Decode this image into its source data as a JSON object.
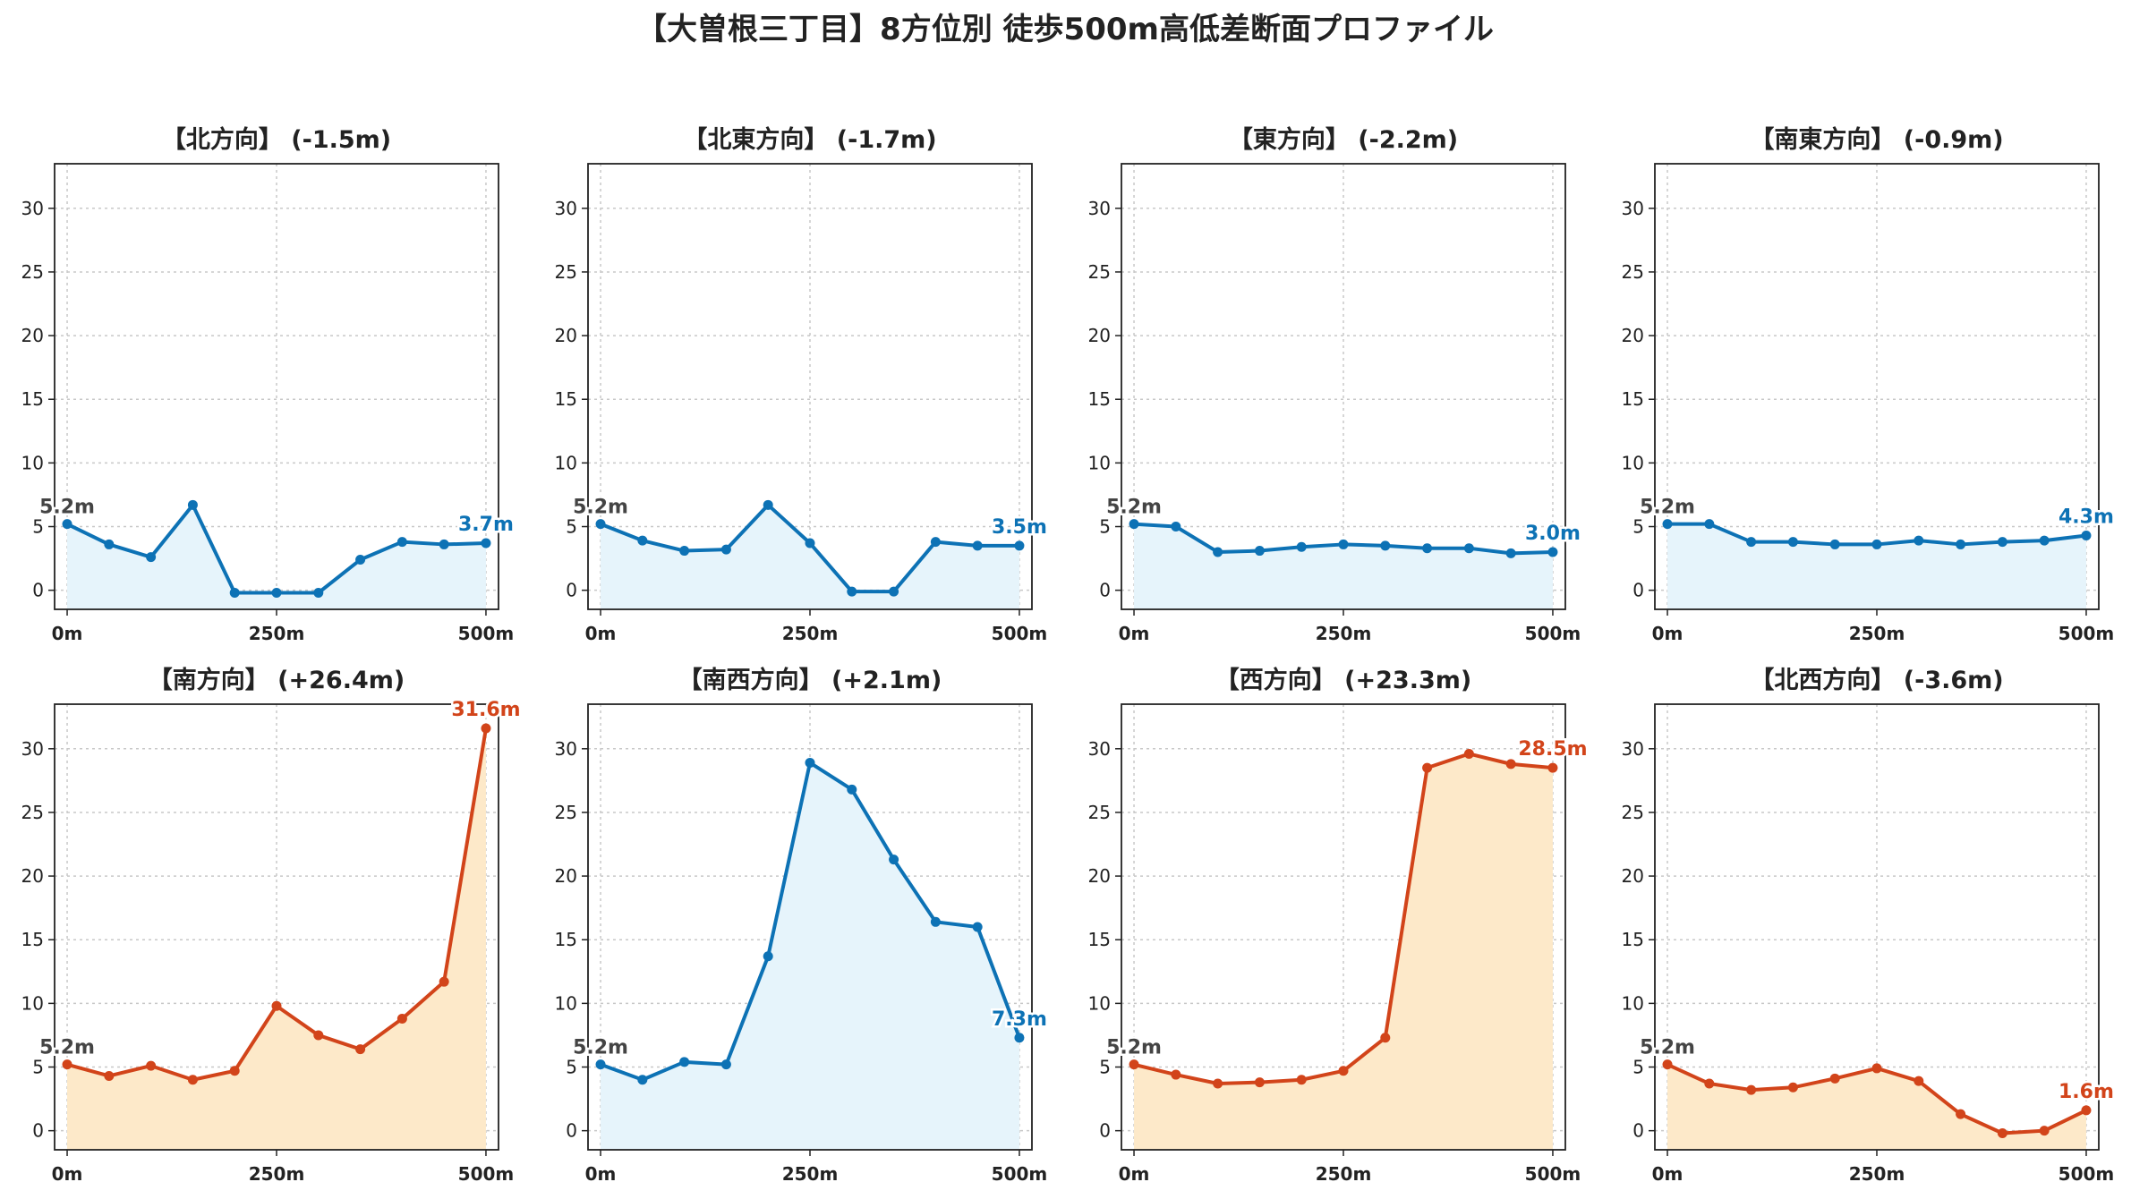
{
  "title": "【大曽根三丁目】8方位別 徒歩500m高低差断面プロファイル",
  "colors": {
    "up": "#d2441a",
    "up_fill": "#fde9c9",
    "down": "#0d72b5",
    "down_fill": "#e6f4fb",
    "start_label": "#444444"
  },
  "chart_data": [
    {
      "type": "area",
      "title": "【北方向】 (-1.5m)",
      "trend": "down",
      "x": [
        0,
        50,
        100,
        150,
        200,
        250,
        300,
        350,
        400,
        450,
        500
      ],
      "y": [
        5.2,
        3.6,
        2.6,
        6.7,
        -0.2,
        -0.2,
        -0.2,
        2.4,
        3.8,
        3.6,
        3.7
      ],
      "start_label": "5.2m",
      "end_label": "3.7m",
      "xticks": [
        "0m",
        "250m",
        "500m"
      ],
      "yticks": [
        0,
        5,
        10,
        15,
        20,
        25,
        30
      ],
      "ylim": [
        -1.5,
        33.5
      ],
      "xlim": [
        -15,
        515
      ],
      "grid": true
    },
    {
      "type": "area",
      "title": "【北東方向】 (-1.7m)",
      "trend": "down",
      "x": [
        0,
        50,
        100,
        150,
        200,
        250,
        300,
        350,
        400,
        450,
        500
      ],
      "y": [
        5.2,
        3.9,
        3.1,
        3.2,
        6.7,
        3.7,
        -0.1,
        -0.1,
        3.8,
        3.5,
        3.5
      ],
      "start_label": "5.2m",
      "end_label": "3.5m",
      "xticks": [
        "0m",
        "250m",
        "500m"
      ],
      "yticks": [
        0,
        5,
        10,
        15,
        20,
        25,
        30
      ],
      "ylim": [
        -1.5,
        33.5
      ],
      "xlim": [
        -15,
        515
      ],
      "grid": true
    },
    {
      "type": "area",
      "title": "【東方向】 (-2.2m)",
      "trend": "down",
      "x": [
        0,
        50,
        100,
        150,
        200,
        250,
        300,
        350,
        400,
        450,
        500
      ],
      "y": [
        5.2,
        5.0,
        3.0,
        3.1,
        3.4,
        3.6,
        3.5,
        3.3,
        3.3,
        2.9,
        3.0
      ],
      "start_label": "5.2m",
      "end_label": "3.0m",
      "xticks": [
        "0m",
        "250m",
        "500m"
      ],
      "yticks": [
        0,
        5,
        10,
        15,
        20,
        25,
        30
      ],
      "ylim": [
        -1.5,
        33.5
      ],
      "xlim": [
        -15,
        515
      ],
      "grid": true
    },
    {
      "type": "area",
      "title": "【南東方向】 (-0.9m)",
      "trend": "down",
      "x": [
        0,
        50,
        100,
        150,
        200,
        250,
        300,
        350,
        400,
        450,
        500
      ],
      "y": [
        5.2,
        5.2,
        3.8,
        3.8,
        3.6,
        3.6,
        3.9,
        3.6,
        3.8,
        3.9,
        4.3
      ],
      "start_label": "5.2m",
      "end_label": "4.3m",
      "xticks": [
        "0m",
        "250m",
        "500m"
      ],
      "yticks": [
        0,
        5,
        10,
        15,
        20,
        25,
        30
      ],
      "ylim": [
        -1.5,
        33.5
      ],
      "xlim": [
        -15,
        515
      ],
      "grid": true
    },
    {
      "type": "area",
      "title": "【南方向】 (+26.4m)",
      "trend": "up",
      "x": [
        0,
        50,
        100,
        150,
        200,
        250,
        300,
        350,
        400,
        450,
        500
      ],
      "y": [
        5.2,
        4.3,
        5.1,
        4.0,
        4.7,
        9.8,
        7.5,
        6.4,
        8.8,
        11.7,
        31.6
      ],
      "start_label": "5.2m",
      "end_label": "31.6m",
      "xticks": [
        "0m",
        "250m",
        "500m"
      ],
      "yticks": [
        0,
        5,
        10,
        15,
        20,
        25,
        30
      ],
      "ylim": [
        -1.5,
        33.5
      ],
      "xlim": [
        -15,
        515
      ],
      "grid": true
    },
    {
      "type": "area",
      "title": "【南西方向】 (+2.1m)",
      "trend": "down",
      "x": [
        0,
        50,
        100,
        150,
        200,
        250,
        300,
        350,
        400,
        450,
        500
      ],
      "y": [
        5.2,
        4.0,
        5.4,
        5.2,
        13.7,
        28.9,
        26.8,
        21.3,
        16.4,
        16.0,
        7.3
      ],
      "start_label": "5.2m",
      "end_label": "7.3m",
      "xticks": [
        "0m",
        "250m",
        "500m"
      ],
      "yticks": [
        0,
        5,
        10,
        15,
        20,
        25,
        30
      ],
      "ylim": [
        -1.5,
        33.5
      ],
      "xlim": [
        -15,
        515
      ],
      "grid": true
    },
    {
      "type": "area",
      "title": "【西方向】 (+23.3m)",
      "trend": "up",
      "x": [
        0,
        50,
        100,
        150,
        200,
        250,
        300,
        350,
        400,
        450,
        500
      ],
      "y": [
        5.2,
        4.4,
        3.7,
        3.8,
        4.0,
        4.7,
        7.3,
        28.5,
        29.6,
        28.8,
        28.5
      ],
      "start_label": "5.2m",
      "end_label": "28.5m",
      "xticks": [
        "0m",
        "250m",
        "500m"
      ],
      "yticks": [
        0,
        5,
        10,
        15,
        20,
        25,
        30
      ],
      "ylim": [
        -1.5,
        33.5
      ],
      "xlim": [
        -15,
        515
      ],
      "grid": true
    },
    {
      "type": "area",
      "title": "【北西方向】 (-3.6m)",
      "trend": "up",
      "x": [
        0,
        50,
        100,
        150,
        200,
        250,
        300,
        350,
        400,
        450,
        500
      ],
      "y": [
        5.2,
        3.7,
        3.2,
        3.4,
        4.1,
        4.9,
        3.9,
        1.3,
        -0.2,
        0.0,
        1.6
      ],
      "start_label": "5.2m",
      "end_label": "1.6m",
      "xticks": [
        "0m",
        "250m",
        "500m"
      ],
      "yticks": [
        0,
        5,
        10,
        15,
        20,
        25,
        30
      ],
      "ylim": [
        -1.5,
        33.5
      ],
      "xlim": [
        -15,
        515
      ],
      "grid": true
    }
  ]
}
